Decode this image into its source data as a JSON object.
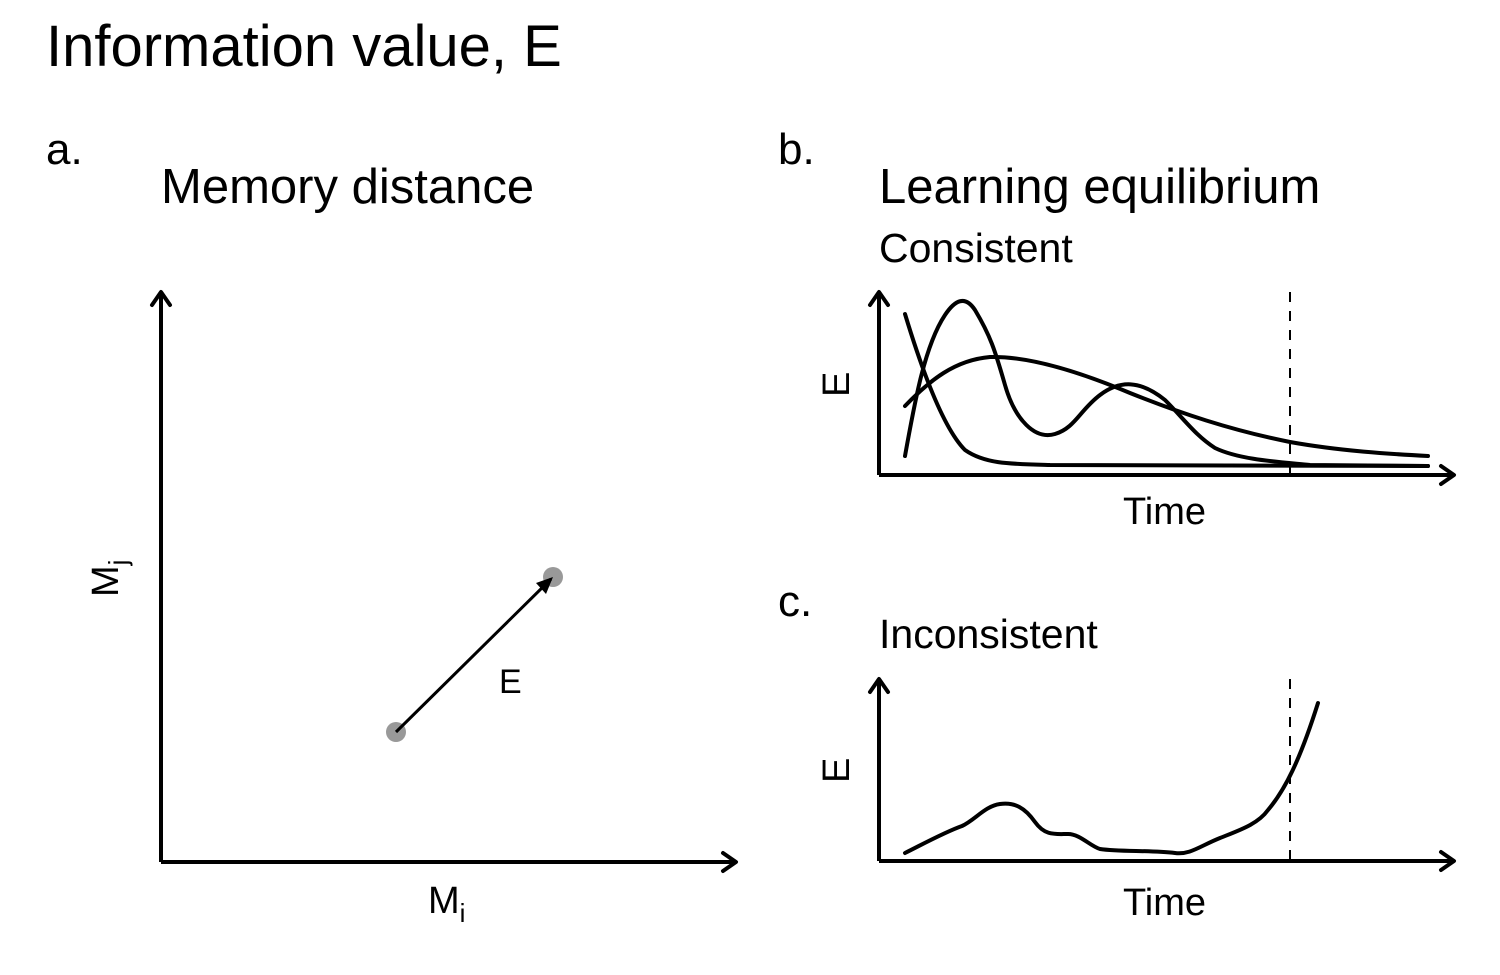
{
  "figure": {
    "title": "Information value, E"
  },
  "panel_a": {
    "letter": "a.",
    "title": "Memory distance",
    "xlabel_main": "M",
    "xlabel_sub": "i",
    "ylabel_main": "M",
    "ylabel_sub": "j",
    "vector_label": "E",
    "point_color": "#999999"
  },
  "panel_b": {
    "letter": "b.",
    "title": "Learning equilibrium",
    "subtitle": "Consistent",
    "xlabel": "Time",
    "ylabel": "E"
  },
  "panel_c": {
    "letter": "c.",
    "subtitle": "Inconsistent",
    "xlabel": "Time",
    "ylabel": "E"
  }
}
